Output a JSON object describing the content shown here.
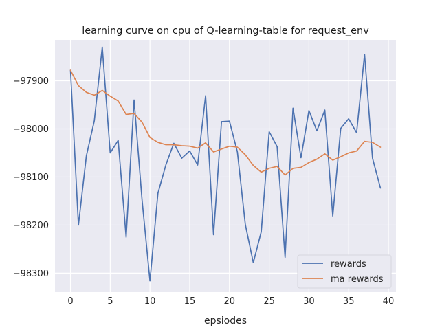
{
  "chart_data": {
    "type": "line",
    "title": "learning curve on cpu of Q-learning-table for request_env",
    "xlabel": "epsiodes",
    "ylabel": "",
    "xlim": [
      -1.95,
      40.95
    ],
    "ylim": [
      -98338,
      -97815
    ],
    "xticks": [
      0,
      5,
      10,
      15,
      20,
      25,
      30,
      35,
      40
    ],
    "yticks": [
      -98300,
      -98200,
      -98100,
      -98000,
      -97900
    ],
    "ytick_labels": [
      "−98300",
      "−98200",
      "−98100",
      "−98000",
      "−97900"
    ],
    "grid": true,
    "background": "#eaeaf2",
    "legend": "lower-right",
    "x": [
      0,
      1,
      2,
      3,
      4,
      5,
      6,
      7,
      8,
      9,
      10,
      11,
      12,
      13,
      14,
      15,
      16,
      17,
      18,
      19,
      20,
      21,
      22,
      23,
      24,
      25,
      26,
      27,
      28,
      29,
      30,
      31,
      32,
      33,
      34,
      35,
      36,
      37,
      38,
      39
    ],
    "series": [
      {
        "name": "rewards",
        "color": "#4c72b0",
        "values": [
          -97878,
          -98200,
          -98056,
          -97983,
          -97830,
          -98050,
          -98024,
          -98225,
          -97940,
          -98147,
          -98316,
          -98134,
          -98075,
          -98030,
          -98061,
          -98046,
          -98075,
          -97931,
          -98220,
          -97985,
          -97984,
          -98048,
          -98199,
          -98278,
          -98214,
          -98006,
          -98037,
          -98267,
          -97957,
          -98060,
          -97962,
          -98004,
          -97961,
          -98181,
          -97999,
          -97979,
          -98008,
          -97845,
          -98061,
          -98123
        ]
      },
      {
        "name": "ma rewards",
        "color": "#dd8452",
        "values": [
          -97878,
          -97910,
          -97924,
          -97930,
          -97920,
          -97932,
          -97942,
          -97970,
          -97968,
          -97986,
          -98018,
          -98028,
          -98033,
          -98033,
          -98035,
          -98036,
          -98040,
          -98029,
          -98048,
          -98042,
          -98036,
          -98038,
          -98054,
          -98076,
          -98090,
          -98082,
          -98078,
          -98096,
          -98082,
          -98080,
          -98070,
          -98063,
          -98052,
          -98065,
          -98058,
          -98050,
          -98046,
          -98026,
          -98028,
          -98038
        ]
      }
    ]
  }
}
